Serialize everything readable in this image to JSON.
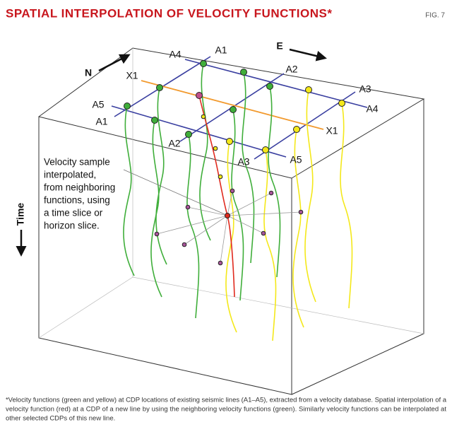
{
  "header": {
    "title": "SPATIAL INTERPOLATION OF VELOCITY FUNCTIONS*",
    "figure": "FIG. 7"
  },
  "labels": {
    "north": "N",
    "east": "E",
    "time": "Time",
    "a4_top": "A4",
    "a1_top": "A1",
    "a2_top": "A2",
    "a3_right": "A3",
    "a4_right": "A4",
    "x1_left": "X1",
    "x1_right": "X1",
    "a5_left": "A5",
    "a1_left": "A1",
    "a2_bottom": "A2",
    "a3_bottom": "A3",
    "a5_right": "A5"
  },
  "annotation": {
    "lines": [
      "Velocity sample",
      "interpolated,",
      "from neighboring",
      "functions, using",
      "a time slice or",
      "horizon slice."
    ]
  },
  "caption": {
    "lines": [
      "*Velocity functions (green and yellow) at CDP locations of existing seismic lines (A1–A5), extracted from a velocity database. Spatial interpolation of a",
      "velocity function (red) at a CDP of a new line by using the neighboring velocity functions (green). Similarly velocity functions can be interpolated at",
      "other selected CDPs of this new line."
    ]
  }
}
